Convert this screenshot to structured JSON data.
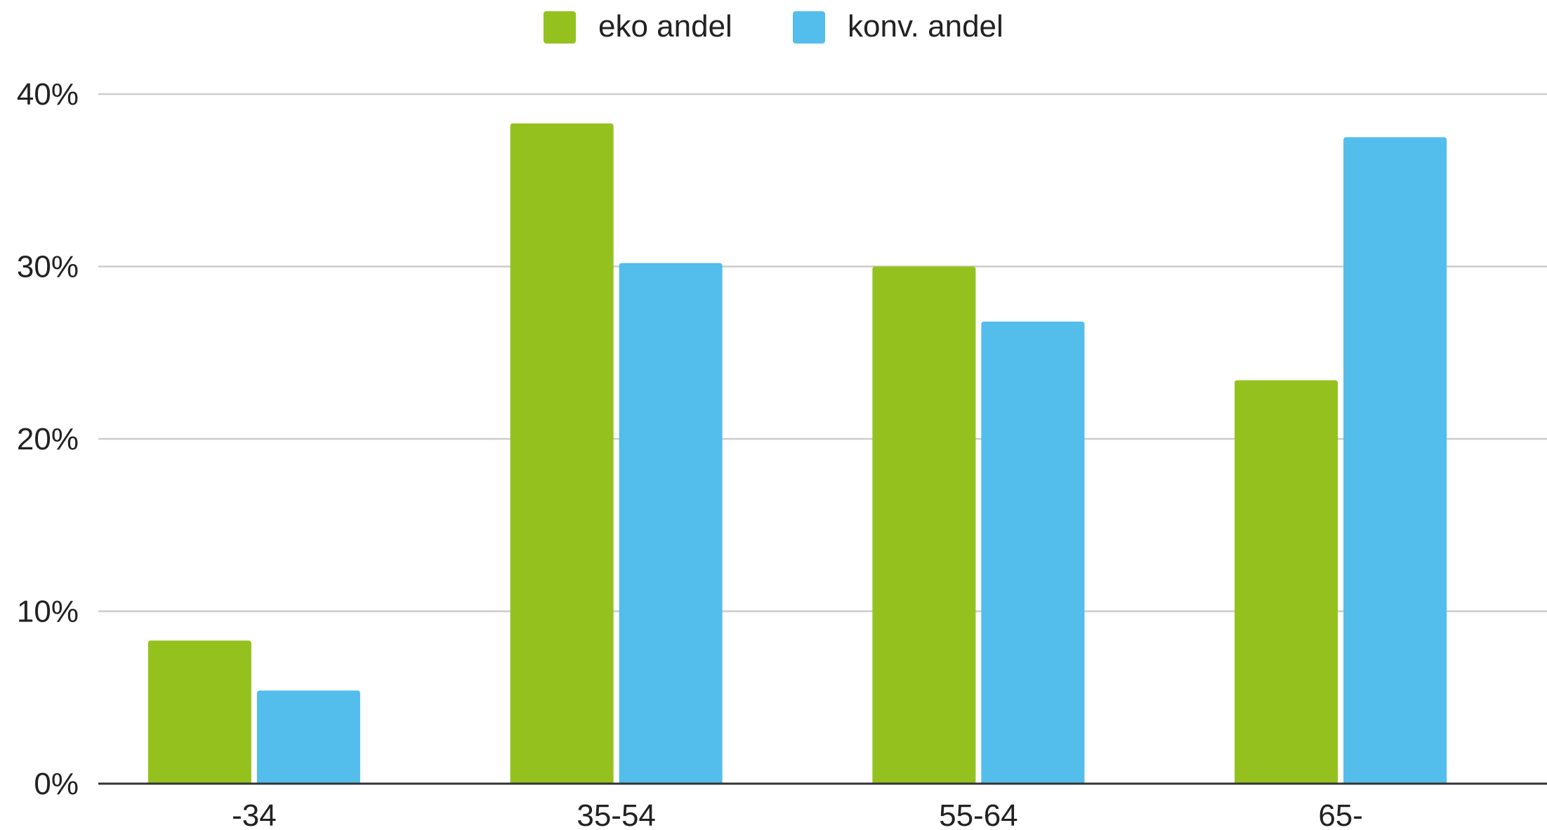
{
  "chart_data": {
    "type": "bar",
    "categories": [
      "-34",
      "35-54",
      "55-64",
      "65-"
    ],
    "series": [
      {
        "name": "eko andel",
        "color": "#95c11f",
        "values": [
          8.3,
          38.3,
          30.0,
          23.4
        ]
      },
      {
        "name": "konv. andel",
        "color": "#53bdeb",
        "values": [
          5.4,
          30.2,
          26.8,
          37.5
        ]
      }
    ],
    "yticks": [
      "0%",
      "10%",
      "20%",
      "30%",
      "40%"
    ],
    "ytick_values": [
      0,
      10,
      20,
      30,
      40
    ],
    "ylim": [
      0,
      40
    ],
    "grid": true,
    "legend": "top-center",
    "title": "",
    "xlabel": "",
    "ylabel": ""
  }
}
